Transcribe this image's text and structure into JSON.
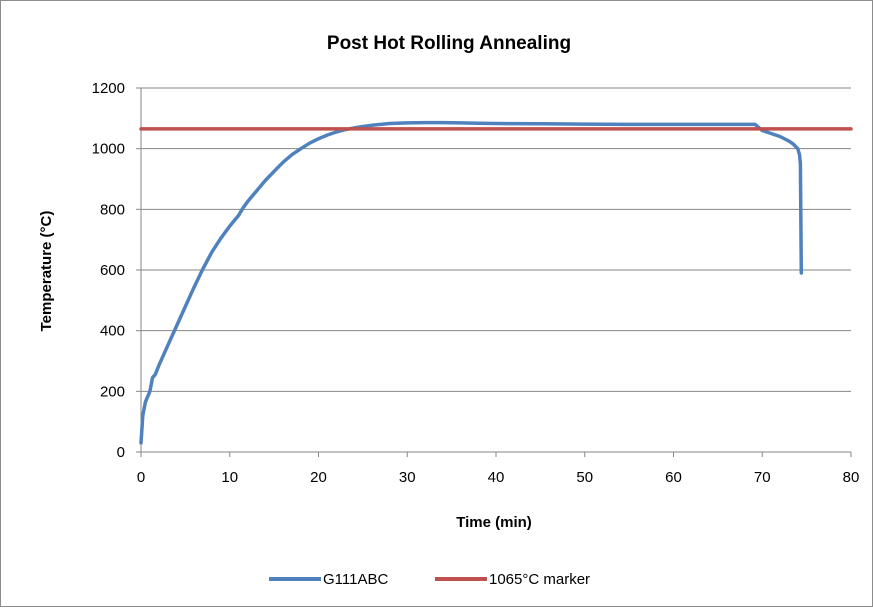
{
  "chart_data": {
    "type": "line",
    "title": "Post Hot Rolling Annealing",
    "xlabel": "Time (min)",
    "ylabel": "Temperature (°C)",
    "xlim": [
      0,
      80
    ],
    "ylim": [
      0,
      1200
    ],
    "x_ticks": [
      "0",
      "10",
      "20",
      "30",
      "40",
      "50",
      "60",
      "70",
      "80"
    ],
    "y_ticks": [
      "0",
      "200",
      "400",
      "600",
      "800",
      "1000",
      "1200"
    ],
    "grid": "horizontal",
    "legend_position": "bottom",
    "series": [
      {
        "name": "G111ABC",
        "color": "#4f81bd",
        "x": [
          0,
          0.2,
          0.5,
          1.0,
          1.3,
          1.6,
          2,
          3,
          4,
          5,
          6,
          7,
          8,
          9,
          10,
          11,
          11.5,
          12,
          13,
          14,
          15,
          16,
          17,
          18,
          19,
          20,
          21,
          22,
          23,
          24,
          25,
          26,
          27,
          28,
          30,
          32,
          34,
          36,
          38,
          40,
          45,
          50,
          55,
          60,
          65,
          68,
          69.2,
          70,
          71,
          72,
          73,
          73.5,
          74,
          74.2,
          74.3,
          74.4
        ],
        "y": [
          30,
          120,
          165,
          200,
          245,
          255,
          285,
          350,
          415,
          480,
          545,
          605,
          660,
          705,
          745,
          780,
          805,
          825,
          860,
          895,
          925,
          955,
          980,
          1000,
          1018,
          1033,
          1045,
          1055,
          1063,
          1068,
          1073,
          1077,
          1080,
          1083,
          1085,
          1086,
          1086,
          1085,
          1084,
          1083,
          1082,
          1081,
          1080,
          1080,
          1080,
          1080,
          1080,
          1060,
          1050,
          1040,
          1025,
          1015,
          1000,
          980,
          950,
          590
        ]
      },
      {
        "name": "1065°C marker",
        "color": "#c0504d",
        "x": [
          0,
          80
        ],
        "y": [
          1065,
          1065
        ]
      }
    ]
  }
}
